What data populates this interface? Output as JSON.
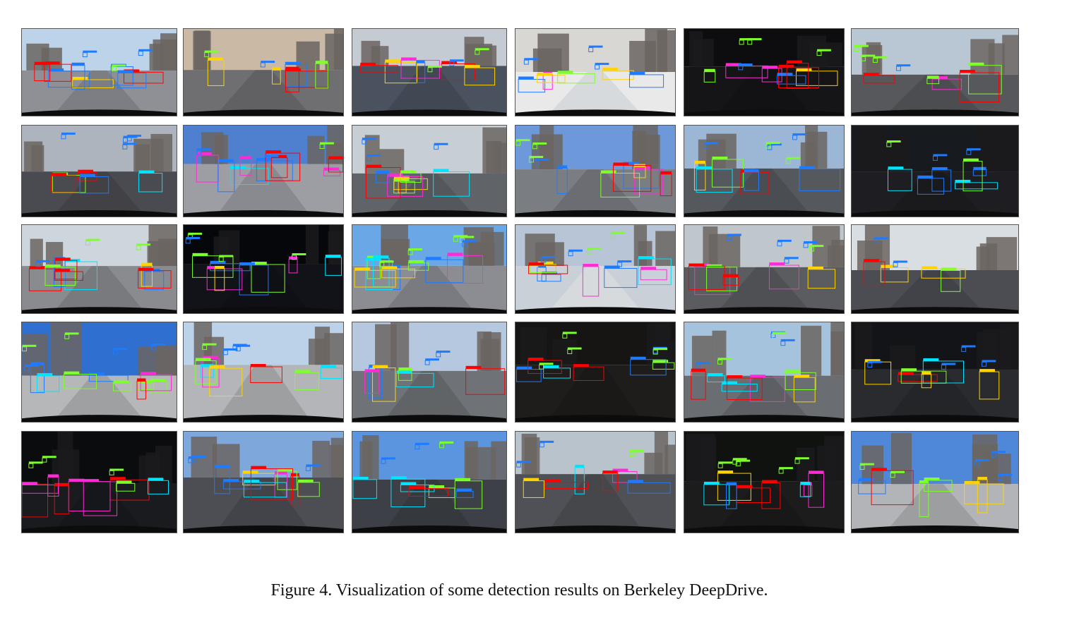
{
  "figure": {
    "caption": "Figure 4. Visualization of some detection results on Berkeley DeepDrive.",
    "rows": 5,
    "columns": 6,
    "panels": [
      {
        "scene": "day",
        "sky": "#bcd3ea",
        "ground": "#8f9096"
      },
      {
        "scene": "day",
        "sky": "#c9b9a5",
        "ground": "#6f6f72"
      },
      {
        "scene": "day",
        "sky": "#c5cbd3",
        "ground": "#4a5260"
      },
      {
        "scene": "snow",
        "sky": "#d8d7d4",
        "ground": "#e9e9ea"
      },
      {
        "scene": "night",
        "sky": "#0d0c0e",
        "ground": "#151518"
      },
      {
        "scene": "day",
        "sky": "#b9c6d3",
        "ground": "#56585c"
      },
      {
        "scene": "day",
        "sky": "#aeb4bd",
        "ground": "#4a4b50"
      },
      {
        "scene": "day",
        "sky": "#4f7fcf",
        "ground": "#9c9ea3"
      },
      {
        "scene": "day",
        "sky": "#c7cfd4",
        "ground": "#606468"
      },
      {
        "scene": "day",
        "sky": "#6d98d9",
        "ground": "#7a7d82"
      },
      {
        "scene": "day",
        "sky": "#9cb6d6",
        "ground": "#55585d"
      },
      {
        "scene": "night",
        "sky": "#171a1e",
        "ground": "#1e1e22"
      },
      {
        "scene": "day",
        "sky": "#cdd6dc",
        "ground": "#8a8b8f"
      },
      {
        "scene": "night",
        "sky": "#06070a",
        "ground": "#121318"
      },
      {
        "scene": "day",
        "sky": "#6aa7e6",
        "ground": "#8b8d92"
      },
      {
        "scene": "snow",
        "sky": "#b7c5d6",
        "ground": "#c9d0d8"
      },
      {
        "scene": "day",
        "sky": "#bfc6cc",
        "ground": "#5a5c60"
      },
      {
        "scene": "day",
        "sky": "#d9dee3",
        "ground": "#4b4d52"
      },
      {
        "scene": "day",
        "sky": "#2f6fd0",
        "ground": "#b6b7b9"
      },
      {
        "scene": "day",
        "sky": "#bcd2e8",
        "ground": "#b4b5b8"
      },
      {
        "scene": "day",
        "sky": "#b5c8df",
        "ground": "#6f7276"
      },
      {
        "scene": "night",
        "sky": "#161513",
        "ground": "#1f1d1c"
      },
      {
        "scene": "day",
        "sky": "#a6c3de",
        "ground": "#6a6d72"
      },
      {
        "scene": "night",
        "sky": "#121417",
        "ground": "#2a2b2f"
      },
      {
        "scene": "night",
        "sky": "#0b0c0e",
        "ground": "#1a1b1e"
      },
      {
        "scene": "day",
        "sky": "#7ea8dc",
        "ground": "#4c4e54"
      },
      {
        "scene": "day",
        "sky": "#5b95df",
        "ground": "#3d4046"
      },
      {
        "scene": "day",
        "sky": "#b8c3cc",
        "ground": "#4f5156"
      },
      {
        "scene": "night",
        "sky": "#10120f",
        "ground": "#1c1c1c"
      },
      {
        "scene": "day",
        "sky": "#4f88d8",
        "ground": "#b2b4b7"
      }
    ]
  }
}
